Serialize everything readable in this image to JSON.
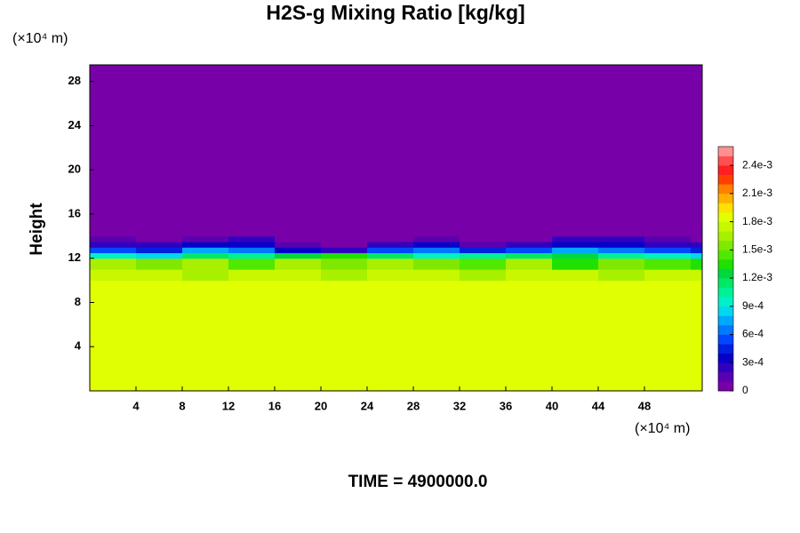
{
  "chart_data": {
    "type": "heatmap",
    "title": "H2S-g Mixing Ratio [kg/kg]",
    "ylabel": "Height",
    "x_unit": "(×10⁴ m)",
    "y_unit": "(×10⁴ m)",
    "footer": "TIME = 4900000.0",
    "x_edges": [
      0,
      4,
      8,
      12,
      16,
      20,
      24,
      28,
      32,
      36,
      40,
      44,
      48,
      52,
      53
    ],
    "y_edges": [
      0,
      10,
      11,
      12,
      12.5,
      13,
      13.5,
      14,
      29.5
    ],
    "values": [
      [
        0.00185,
        0.00185,
        0.00185,
        0.00185,
        0.00185,
        0.00185,
        0.00185,
        0.00185,
        0.00185,
        0.00185,
        0.00185,
        0.00185,
        0.00185,
        0.00185
      ],
      [
        0.0017,
        0.0017,
        0.0016,
        0.0017,
        0.0017,
        0.0016,
        0.0017,
        0.0017,
        0.0016,
        0.0017,
        0.0017,
        0.0016,
        0.0017,
        0.0017
      ],
      [
        0.0016,
        0.0015,
        0.0016,
        0.0014,
        0.0016,
        0.0015,
        0.0016,
        0.0015,
        0.0014,
        0.0016,
        0.0013,
        0.0015,
        0.0014,
        0.0013
      ],
      [
        0.0009,
        0.0008,
        0.0011,
        0.001,
        0.0012,
        0.0013,
        0.0011,
        0.0009,
        0.001,
        0.0011,
        0.0012,
        0.001,
        0.0009,
        0.0008
      ],
      [
        0.0005,
        0.0004,
        0.0007,
        0.0006,
        0.0003,
        0.0002,
        0.0005,
        0.0006,
        0.0004,
        0.0005,
        0.0007,
        0.0006,
        0.0005,
        0.0004
      ],
      [
        0.0002,
        0.0002,
        0.0003,
        0.0003,
        0.0001,
        0,
        0.0002,
        0.0003,
        0.0001,
        0.0002,
        0.0003,
        0.0003,
        0.0002,
        0.0002
      ],
      [
        0.0001,
        0,
        0.0001,
        0.0002,
        0,
        0,
        0,
        0.0001,
        0,
        0,
        0.0002,
        0.0002,
        0.0001,
        0
      ],
      [
        0,
        0,
        0,
        0,
        0,
        0,
        0,
        0,
        0,
        0,
        0,
        0,
        0,
        0
      ]
    ],
    "xlim": [
      0,
      53
    ],
    "ylim": [
      0,
      29.5
    ],
    "xticks": [
      4,
      8,
      12,
      16,
      20,
      24,
      28,
      32,
      36,
      40,
      44,
      48
    ],
    "yticks": [
      4,
      8,
      12,
      16,
      20,
      24,
      28
    ],
    "clim": [
      0,
      0.0026
    ],
    "colorscale": [
      "#7800a8",
      "#5a00b0",
      "#3000c0",
      "#0800c8",
      "#0020e0",
      "#0048ff",
      "#0078ff",
      "#00a8ff",
      "#00d8f0",
      "#00f0c8",
      "#00f098",
      "#00e868",
      "#00d840",
      "#20e000",
      "#50e800",
      "#80e800",
      "#a8f000",
      "#c8f800",
      "#e0ff00",
      "#ffe000",
      "#ffb000",
      "#ff8000",
      "#ff4000",
      "#ff2020",
      "#ff5050",
      "#ff9090"
    ],
    "cticks": [
      0,
      {
        "value": 0.0003,
        "label": "3e-4"
      },
      {
        "value": 0.0006,
        "label": "6e-4"
      },
      {
        "value": 0.0009,
        "label": "9e-4"
      },
      {
        "value": 0.0012,
        "label": "1.2e-3"
      },
      {
        "value": 0.0015,
        "label": "1.5e-3"
      },
      {
        "value": 0.0018,
        "label": "1.8e-3"
      },
      {
        "value": 0.0021,
        "label": "2.1e-3"
      },
      {
        "value": 0.0024,
        "label": "2.4e-3"
      }
    ]
  }
}
